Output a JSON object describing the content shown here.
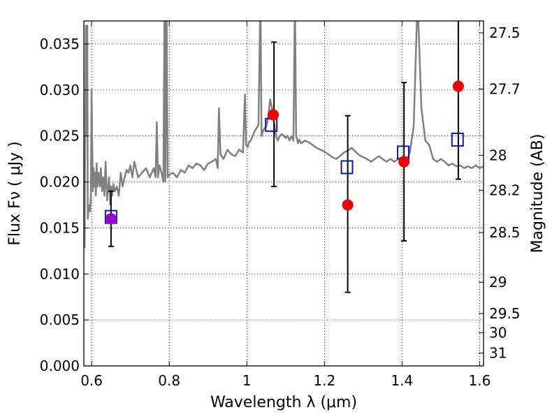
{
  "chart_data": {
    "type": "line",
    "xlabel": "Wavelength  λ (μm)",
    "ylabel": "Flux  Fν  ( μJy )",
    "y2label": "Magnitude (AB)",
    "xlim": [
      0.58,
      1.61
    ],
    "ylim": [
      0.0,
      0.0375
    ],
    "grid": true,
    "x_ticks": [
      0.6,
      0.8,
      1.0,
      1.2,
      1.4,
      1.6
    ],
    "x_tick_labels": [
      "0.6",
      "0.8",
      "1",
      "1.2",
      "1.4",
      "1.6"
    ],
    "y_ticks": [
      0.0,
      0.005,
      0.01,
      0.015,
      0.02,
      0.025,
      0.03,
      0.035
    ],
    "y_tick_labels": [
      "0.000",
      "0.005",
      "0.010",
      "0.015",
      "0.020",
      "0.025",
      "0.030",
      "0.035"
    ],
    "mag_ticks": [
      {
        "flux": 0.0362,
        "label": "27.5"
      },
      {
        "flux": 0.0301,
        "label": "27.7"
      },
      {
        "flux": 0.0229,
        "label": "28"
      },
      {
        "flux": 0.0191,
        "label": "28.2"
      },
      {
        "flux": 0.0145,
        "label": "28.5"
      },
      {
        "flux": 0.0091,
        "label": "29"
      },
      {
        "flux": 0.0057,
        "label": "29.5"
      },
      {
        "flux": 0.0036,
        "label": "30"
      },
      {
        "flux": 0.0014,
        "label": "31"
      }
    ],
    "spectrum": {
      "color": "#808080",
      "x": [
        0.582,
        0.585,
        0.588,
        0.589,
        0.59,
        0.592,
        0.594,
        0.596,
        0.598,
        0.6,
        0.603,
        0.605,
        0.607,
        0.609,
        0.611,
        0.613,
        0.615,
        0.618,
        0.621,
        0.624,
        0.627,
        0.63,
        0.633,
        0.636,
        0.64,
        0.645,
        0.648,
        0.65,
        0.653,
        0.656,
        0.66,
        0.665,
        0.67,
        0.675,
        0.68,
        0.685,
        0.69,
        0.695,
        0.7,
        0.705,
        0.71,
        0.72,
        0.73,
        0.74,
        0.75,
        0.76,
        0.765,
        0.768,
        0.771,
        0.775,
        0.78,
        0.785,
        0.788,
        0.79,
        0.793,
        0.796,
        0.8,
        0.81,
        0.82,
        0.83,
        0.84,
        0.85,
        0.86,
        0.87,
        0.88,
        0.89,
        0.9,
        0.91,
        0.92,
        0.925,
        0.928,
        0.932,
        0.94,
        0.95,
        0.96,
        0.97,
        0.98,
        0.99,
        0.995,
        0.998,
        1.002,
        1.005,
        1.01,
        1.02,
        1.03,
        1.035,
        1.038,
        1.041,
        1.045,
        1.05,
        1.055,
        1.06,
        1.065,
        1.07,
        1.075,
        1.08,
        1.085,
        1.09,
        1.095,
        1.1,
        1.105,
        1.11,
        1.115,
        1.12,
        1.124,
        1.127,
        1.129,
        1.132,
        1.135,
        1.14,
        1.15,
        1.16,
        1.17,
        1.18,
        1.19,
        1.2,
        1.21,
        1.22,
        1.23,
        1.24,
        1.25,
        1.26,
        1.27,
        1.28,
        1.29,
        1.3,
        1.31,
        1.32,
        1.33,
        1.34,
        1.35,
        1.36,
        1.37,
        1.38,
        1.39,
        1.4,
        1.41,
        1.42,
        1.43,
        1.44,
        1.45,
        1.46,
        1.47,
        1.48,
        1.49,
        1.5,
        1.51,
        1.52,
        1.53,
        1.54,
        1.55,
        1.56,
        1.57,
        1.58,
        1.59,
        1.6,
        1.61
      ],
      "y": [
        0.0128,
        0.037,
        0.025,
        0.037,
        0.016,
        0.017,
        0.0175,
        0.0168,
        0.0185,
        0.03,
        0.019,
        0.0215,
        0.0195,
        0.021,
        0.0185,
        0.022,
        0.0195,
        0.021,
        0.0195,
        0.0215,
        0.019,
        0.0205,
        0.0185,
        0.0222,
        0.018,
        0.0205,
        0.0175,
        0.0195,
        0.0185,
        0.0198,
        0.019,
        0.0195,
        0.0185,
        0.021,
        0.0195,
        0.0205,
        0.0213,
        0.021,
        0.0218,
        0.0205,
        0.0222,
        0.0205,
        0.021,
        0.0215,
        0.0205,
        0.0215,
        0.0205,
        0.0265,
        0.0205,
        0.0218,
        0.021,
        0.02,
        0.04,
        0.02,
        0.04,
        0.0205,
        0.0208,
        0.021,
        0.0205,
        0.0213,
        0.021,
        0.0218,
        0.0215,
        0.022,
        0.0218,
        0.0213,
        0.022,
        0.0222,
        0.0225,
        0.0215,
        0.028,
        0.023,
        0.0225,
        0.0235,
        0.023,
        0.0228,
        0.0235,
        0.0232,
        0.0295,
        0.024,
        0.0238,
        0.0243,
        0.0245,
        0.0255,
        0.0262,
        0.04,
        0.025,
        0.0255,
        0.0258,
        0.026,
        0.027,
        0.029,
        0.028,
        0.0265,
        0.025,
        0.0245,
        0.025,
        0.0252,
        0.025,
        0.0248,
        0.025,
        0.0245,
        0.025,
        0.0245,
        0.04,
        0.025,
        0.0247,
        0.0242,
        0.0246,
        0.0242,
        0.0245,
        0.0243,
        0.024,
        0.0237,
        0.0235,
        0.0233,
        0.023,
        0.0227,
        0.0225,
        0.0228,
        0.0232,
        0.0234,
        0.0237,
        0.0233,
        0.0229,
        0.0227,
        0.0225,
        0.0222,
        0.0225,
        0.0228,
        0.0225,
        0.0222,
        0.0225,
        0.0222,
        0.0225,
        0.0227,
        0.0222,
        0.0232,
        0.026,
        0.04,
        0.028,
        0.0245,
        0.024,
        0.0225,
        0.0222,
        0.0225,
        0.0222,
        0.0218,
        0.022,
        0.0217,
        0.0218,
        0.0215,
        0.0217,
        0.0215,
        0.0218,
        0.0215,
        0.0217
      ]
    },
    "errorbars": [
      {
        "x": 0.65,
        "lo": 0.013,
        "hi": 0.019
      },
      {
        "x": 1.07,
        "lo": 0.0195,
        "hi": 0.0352
      },
      {
        "x": 1.26,
        "lo": 0.008,
        "hi": 0.0272
      },
      {
        "x": 1.405,
        "lo": 0.0136,
        "hi": 0.0308
      },
      {
        "x": 1.545,
        "lo": 0.0203,
        "hi": 0.038
      }
    ],
    "model_points": {
      "marker": "open square",
      "color": "#1010c8",
      "points": [
        {
          "x": 0.65,
          "y": 0.0162
        },
        {
          "x": 1.063,
          "y": 0.0262
        },
        {
          "x": 1.258,
          "y": 0.0216
        },
        {
          "x": 1.403,
          "y": 0.0232
        },
        {
          "x": 1.543,
          "y": 0.0246
        }
      ]
    },
    "observed_points": {
      "marker": "filled circle",
      "color": "#ee0000",
      "points": [
        {
          "x": 0.65,
          "y": 0.016,
          "color": "#9900cc"
        },
        {
          "x": 1.068,
          "y": 0.0273
        },
        {
          "x": 1.26,
          "y": 0.0175
        },
        {
          "x": 1.405,
          "y": 0.0222
        },
        {
          "x": 1.545,
          "y": 0.0304
        }
      ]
    }
  }
}
